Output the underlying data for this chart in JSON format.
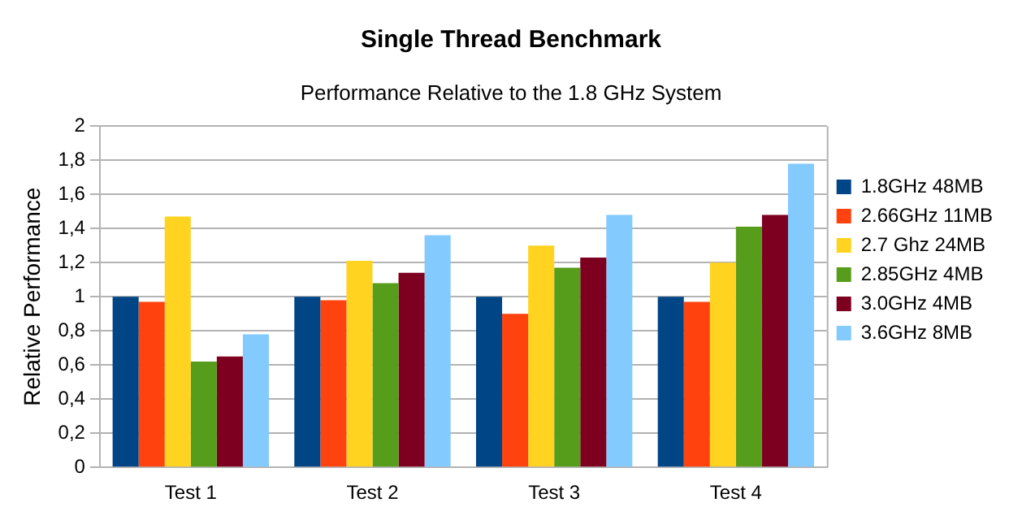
{
  "chart_data": {
    "type": "bar",
    "title": "Single Thread Benchmark",
    "subtitle": "Performance Relative to the 1.8 GHz System",
    "ylabel": "Relative Performance",
    "categories": [
      "Test 1",
      "Test 2",
      "Test 3",
      "Test 4"
    ],
    "series": [
      {
        "name": "1.8GHz 48MB",
        "color": "#004586",
        "values": [
          1,
          1,
          1,
          1
        ]
      },
      {
        "name": "2.66GHz 11MB",
        "color": "#ff420e",
        "values": [
          0.97,
          0.98,
          0.9,
          0.97
        ]
      },
      {
        "name": "2.7 Ghz 24MB",
        "color": "#ffd320",
        "values": [
          1.47,
          1.21,
          1.3,
          1.2
        ]
      },
      {
        "name": "2.85GHz 4MB",
        "color": "#579d1c",
        "values": [
          0.62,
          1.08,
          1.17,
          1.41
        ]
      },
      {
        "name": "3.0GHz 4MB",
        "color": "#7e0021",
        "values": [
          0.65,
          1.14,
          1.23,
          1.48
        ]
      },
      {
        "name": "3.6GHz 8MB",
        "color": "#83caff",
        "values": [
          0.78,
          1.36,
          1.48,
          1.78
        ]
      }
    ],
    "ylim": [
      0,
      2
    ],
    "yticks": [
      0,
      {
        "value": 0.2,
        "label": "0,2"
      },
      {
        "value": 0.4,
        "label": "0,4"
      },
      {
        "value": 0.6,
        "label": "0,6"
      },
      {
        "value": 0.8,
        "label": "0,8"
      },
      1,
      {
        "value": 1.2,
        "label": "1,2"
      },
      {
        "value": 1.4,
        "label": "1,4"
      },
      {
        "value": 1.6,
        "label": "1,6"
      },
      {
        "value": 1.8,
        "label": "1,8"
      },
      2
    ],
    "grid": "y",
    "legend": "right"
  }
}
